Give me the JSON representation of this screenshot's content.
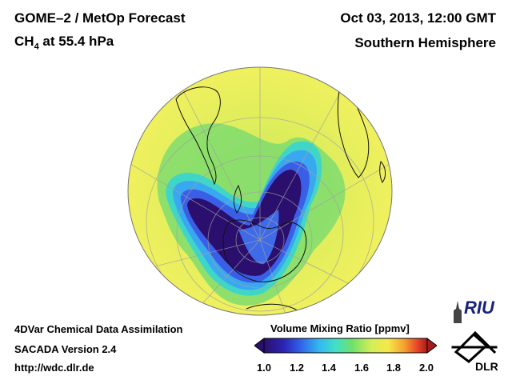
{
  "header": {
    "title_line1": "GOME–2 / MetOp Forecast",
    "species": "CH",
    "species_subscript": "4",
    "level_text": " at 55.4 hPa",
    "date": "Oct 03, 2013, 12:00 GMT",
    "region": "Southern Hemisphere"
  },
  "footer": {
    "line1": "4DVar Chemical Data Assimilation",
    "line2": "SACADA Version 2.4",
    "url": "http://wdc.dlr.de"
  },
  "colorbar": {
    "title": "Volume Mixing Ratio [ppmv]",
    "tick_labels": [
      "1.0",
      "1.2",
      "1.4",
      "1.6",
      "1.8",
      "2.0"
    ],
    "min": 1.0,
    "max": 2.0
  },
  "logos": {
    "riu": "RIU",
    "dlr": "DLR"
  },
  "map": {
    "projection": "orthographic, south polar view",
    "graticule": true,
    "low_region_value_ppmv": 1.05,
    "background_value_ppmv": 1.68
  }
}
